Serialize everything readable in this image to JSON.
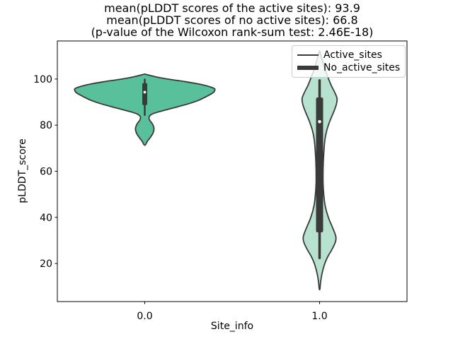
{
  "chart_data": {
    "type": "violin",
    "title_lines": [
      "mean(pLDDT scores of the active sites): 93.9",
      "mean(pLDDT scores of no active sites): 66.8",
      "(p-value of the Wilcoxon rank-sum test: 2.46E-18)"
    ],
    "xlabel": "Site_info",
    "ylabel": "pLDDT_score",
    "xlim": [
      -0.5,
      1.5
    ],
    "ylim": [
      3.5,
      116.5
    ],
    "grid": false,
    "x_ticks": [
      {
        "value": 0.0,
        "label": "0.0"
      },
      {
        "value": 1.0,
        "label": "1.0"
      }
    ],
    "y_ticks": [
      {
        "value": 20,
        "label": "20"
      },
      {
        "value": 40,
        "label": "40"
      },
      {
        "value": 60,
        "label": "60"
      },
      {
        "value": 80,
        "label": "80"
      },
      {
        "value": 100,
        "label": "100"
      }
    ],
    "legend": {
      "position": "upper right",
      "entries": [
        {
          "label": "Active_sites",
          "handle": "thin-line",
          "color": "#3a3a3a"
        },
        {
          "label": "No_active_sites",
          "handle": "thick-line",
          "color": "#3a3a3a"
        }
      ]
    },
    "series": [
      {
        "name": "Active_sites",
        "x": 0.0,
        "fill": "#58c19b",
        "edge": "#3a3a3a",
        "box": {
          "whisker_low": 84.4,
          "q1": 88.7,
          "median": 94.3,
          "q3": 98.2,
          "whisker_high": 99.8
        },
        "density_profile": [
          [
            102.0,
            0.006
          ],
          [
            101.0,
            0.06
          ],
          [
            100.0,
            0.13
          ],
          [
            99.0,
            0.22
          ],
          [
            97.5,
            0.33
          ],
          [
            96.0,
            0.395
          ],
          [
            95.0,
            0.4
          ],
          [
            94.0,
            0.39
          ],
          [
            92.5,
            0.355
          ],
          [
            91.0,
            0.315
          ],
          [
            89.5,
            0.26
          ],
          [
            88.0,
            0.19
          ],
          [
            86.5,
            0.115
          ],
          [
            85.2,
            0.055
          ],
          [
            84.0,
            0.028
          ],
          [
            82.5,
            0.026
          ],
          [
            80.5,
            0.044
          ],
          [
            78.5,
            0.053
          ],
          [
            76.5,
            0.047
          ],
          [
            74.5,
            0.03
          ],
          [
            73.0,
            0.015
          ],
          [
            71.5,
            0.004
          ]
        ]
      },
      {
        "name": "No_active_sites",
        "x": 1.0,
        "fill": "#b7e2cf",
        "edge": "#3a3a3a",
        "box": {
          "whisker_low": 22.4,
          "q1": 33.5,
          "median": 81.5,
          "q3": 92.0,
          "whisker_high": 99.4
        },
        "density_profile": [
          [
            111.8,
            0.002
          ],
          [
            108.0,
            0.016
          ],
          [
            104.0,
            0.032
          ],
          [
            100.0,
            0.052
          ],
          [
            97.0,
            0.068
          ],
          [
            94.0,
            0.088
          ],
          [
            91.5,
            0.1
          ],
          [
            89.0,
            0.096
          ],
          [
            86.0,
            0.082
          ],
          [
            82.0,
            0.06
          ],
          [
            78.0,
            0.042
          ],
          [
            74.0,
            0.031
          ],
          [
            70.0,
            0.026
          ],
          [
            65.0,
            0.022
          ],
          [
            60.0,
            0.02
          ],
          [
            55.0,
            0.02
          ],
          [
            50.0,
            0.024
          ],
          [
            45.0,
            0.032
          ],
          [
            40.0,
            0.05
          ],
          [
            36.0,
            0.072
          ],
          [
            33.0,
            0.088
          ],
          [
            31.0,
            0.094
          ],
          [
            29.0,
            0.089
          ],
          [
            26.0,
            0.07
          ],
          [
            23.0,
            0.047
          ],
          [
            20.0,
            0.03
          ],
          [
            16.0,
            0.015
          ],
          [
            12.0,
            0.006
          ],
          [
            9.0,
            0.002
          ]
        ]
      }
    ]
  }
}
